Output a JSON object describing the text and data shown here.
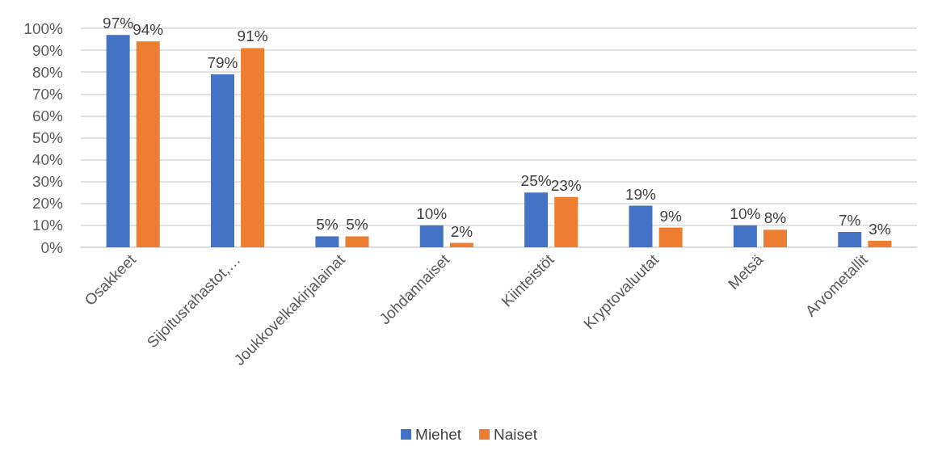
{
  "chart_data": {
    "type": "bar",
    "categories": [
      "Osakkeet",
      "Sijoitusrahastot,…",
      "Joukkovelkakirjalainat",
      "Johdannaiset",
      "Kiinteistöt",
      "Kryptovaluutat",
      "Metsä",
      "Arvometallit"
    ],
    "series": [
      {
        "name": "Miehet",
        "color": "#4472c4",
        "values": [
          97,
          79,
          5,
          10,
          25,
          19,
          10,
          7
        ],
        "value_labels": [
          "97%",
          "79%",
          "5%",
          "10%",
          "25%",
          "19%",
          "10%",
          "7%"
        ]
      },
      {
        "name": "Naiset",
        "color": "#ed7d31",
        "values": [
          94,
          91,
          5,
          2,
          23,
          9,
          8,
          3
        ],
        "value_labels": [
          "94%",
          "91%",
          "5%",
          "2%",
          "23%",
          "9%",
          "8%",
          "3%"
        ]
      }
    ],
    "ylim": [
      0,
      100
    ],
    "yticks": [
      {
        "value": 0,
        "label": "0%"
      },
      {
        "value": 10,
        "label": "10%"
      },
      {
        "value": 20,
        "label": "20%"
      },
      {
        "value": 30,
        "label": "30%"
      },
      {
        "value": 40,
        "label": "40%"
      },
      {
        "value": 50,
        "label": "50%"
      },
      {
        "value": 60,
        "label": "60%"
      },
      {
        "value": 70,
        "label": "70%"
      },
      {
        "value": 80,
        "label": "80%"
      },
      {
        "value": 90,
        "label": "90%"
      },
      {
        "value": 100,
        "label": "100%"
      }
    ],
    "grid": "y",
    "legend": "bottom"
  }
}
